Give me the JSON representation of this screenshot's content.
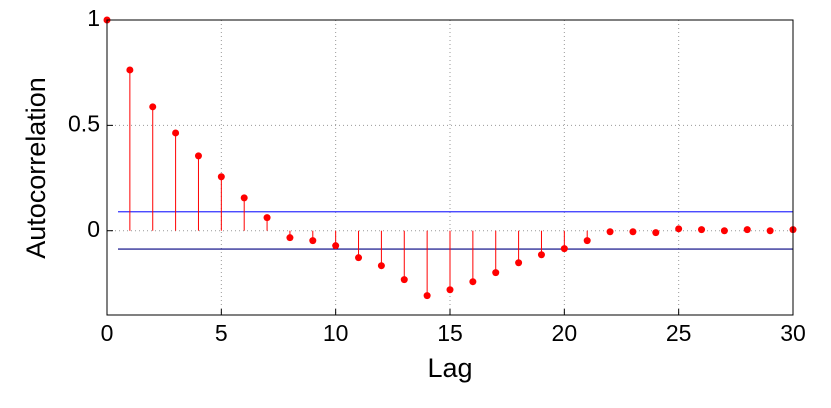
{
  "chart_data": {
    "type": "stem",
    "xlabel": "Lag",
    "ylabel": "Autocorrelation",
    "x": [
      0,
      1,
      2,
      3,
      4,
      5,
      6,
      7,
      8,
      9,
      10,
      11,
      12,
      13,
      14,
      15,
      16,
      17,
      18,
      19,
      20,
      21,
      22,
      23,
      24,
      25,
      26,
      27,
      28,
      29,
      30
    ],
    "series": [
      {
        "color": "#ff0000",
        "values": [
          1,
          0.763,
          0.588,
          0.464,
          0.355,
          0.256,
          0.156,
          0.062,
          -0.033,
          -0.047,
          -0.071,
          -0.128,
          -0.166,
          -0.232,
          -0.308,
          -0.28,
          -0.242,
          -0.199,
          -0.152,
          -0.114,
          -0.085,
          -0.047,
          -0.005,
          -0.005,
          -0.009,
          0.009,
          0.005,
          0,
          0.005,
          0,
          0.005
        ]
      }
    ],
    "bounds": [
      {
        "value": 0.09,
        "color": "#3333ff"
      },
      {
        "value": -0.087,
        "color": "#000080"
      }
    ],
    "xlim": [
      0,
      30
    ],
    "xticks": [
      0,
      5,
      10,
      15,
      20,
      25,
      30
    ],
    "ylim": [
      -0.4,
      1
    ],
    "yticks": [
      0,
      0.5,
      1
    ],
    "grid": true
  }
}
